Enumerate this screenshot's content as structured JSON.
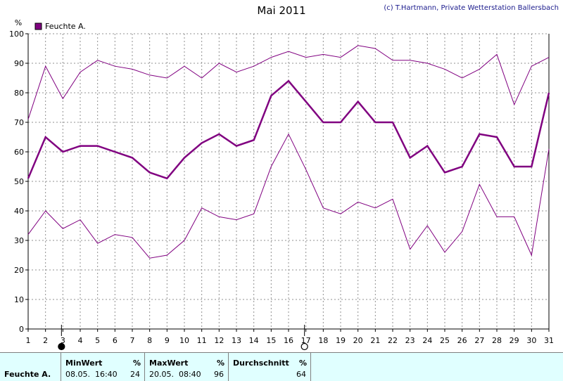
{
  "title": "Mai 2011",
  "copyright": "(c) T.Hartmann, Private Wetterstation Ballersbach",
  "chart_data": {
    "type": "line",
    "ylabel": "%",
    "ylim": [
      0,
      100
    ],
    "yticks": [
      0,
      10,
      20,
      30,
      40,
      50,
      60,
      70,
      80,
      90,
      100
    ],
    "x": [
      1,
      2,
      3,
      4,
      5,
      6,
      7,
      8,
      9,
      10,
      11,
      12,
      13,
      14,
      15,
      16,
      17,
      18,
      19,
      20,
      21,
      22,
      23,
      24,
      25,
      26,
      27,
      28,
      29,
      30,
      31
    ],
    "xticks": [
      "1",
      "2",
      "3",
      "4",
      "5",
      "6",
      "7",
      "8",
      "9",
      "10",
      "11",
      "12",
      "13",
      "14",
      "15",
      "16",
      "17",
      "18",
      "19",
      "20",
      "21",
      "22",
      "23",
      "24",
      "25",
      "26",
      "27",
      "28",
      "29",
      "30",
      "31"
    ],
    "grid": true,
    "legend_position": "top-left",
    "legend": [
      "Feuchte A."
    ],
    "series": [
      {
        "name": "Feuchte A.",
        "role": "mean",
        "color": "#800080",
        "values": [
          51,
          65,
          60,
          62,
          62,
          60,
          58,
          53,
          51,
          58,
          63,
          66,
          62,
          64,
          79,
          84,
          77,
          70,
          70,
          77,
          70,
          70,
          58,
          62,
          53,
          55,
          66,
          65,
          55,
          55,
          80
        ]
      },
      {
        "role": "max",
        "color": "#800080",
        "values": [
          71,
          89,
          78,
          87,
          91,
          89,
          88,
          86,
          85,
          89,
          85,
          90,
          87,
          89,
          92,
          94,
          92,
          93,
          92,
          96,
          95,
          91,
          91,
          90,
          88,
          85,
          88,
          93,
          76,
          89,
          92
        ]
      },
      {
        "role": "min",
        "color": "#800080",
        "values": [
          32,
          40,
          34,
          37,
          29,
          32,
          31,
          24,
          25,
          30,
          41,
          38,
          37,
          39,
          55,
          66,
          54,
          41,
          39,
          43,
          41,
          44,
          27,
          35,
          26,
          33,
          49,
          38,
          38,
          25,
          61
        ]
      }
    ],
    "moon_markers": [
      {
        "day": 3,
        "phase": "new-moon"
      },
      {
        "day": 17,
        "phase": "full-moon"
      }
    ]
  },
  "stats": {
    "row_label": "Feuchte A.",
    "min": {
      "header": "MinWert",
      "unit": "%",
      "date_time": "08.05.  16:40",
      "value": "24"
    },
    "max": {
      "header": "MaxWert",
      "unit": "%",
      "date_time": "20.05.  08:40",
      "value": "96"
    },
    "avg": {
      "header": "Durchschnitt",
      "unit": "%",
      "value": "64"
    }
  }
}
